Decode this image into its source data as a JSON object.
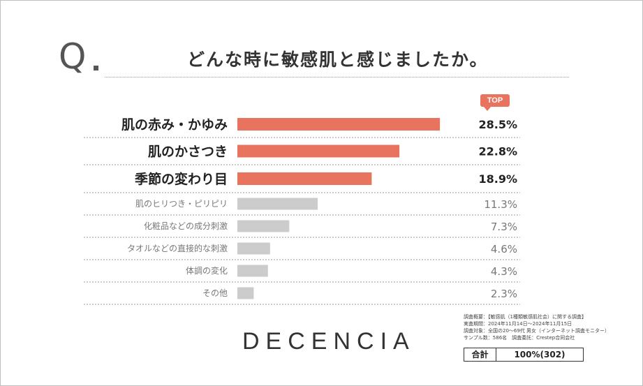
{
  "question_mark": "Q",
  "title": "どんな時に敏感肌と感じましたか。",
  "badge": "TOP",
  "brand": "DECENCIA",
  "survey": {
    "line1": "調査概要：【敏感肌（1種類敏感肌社会）に関する調査】",
    "line2": "実査期間：2024年11月14日～2024年11月15日",
    "line3": "調査対象：全国の20～69代 男女（インターネット調査モニター）",
    "line4": "サンプル数：586名　調査委託：Crestep合同会社"
  },
  "total": {
    "label": "合計",
    "value": "100%(302)"
  },
  "colors": {
    "highlight": "#e8735f",
    "rest": "#cccccc"
  },
  "chart_data": {
    "type": "bar",
    "orientation": "horizontal",
    "title": "どんな時に敏感肌と感じましたか。",
    "categories": [
      "肌の赤み・かゆみ",
      "肌のかさつき",
      "季節の変わり目",
      "肌のヒリつき・ピリピリ",
      "化粧品などの成分刺激",
      "タオルなどの直接的な刺激",
      "体調の変化",
      "その他"
    ],
    "values": [
      28.5,
      22.8,
      18.9,
      11.3,
      7.3,
      4.6,
      4.3,
      2.3
    ],
    "value_labels": [
      "28.5%",
      "22.8%",
      "18.9%",
      "11.3%",
      "7.3%",
      "4.6%",
      "4.3%",
      "2.3%"
    ],
    "highlighted_count": 3,
    "unit": "%"
  }
}
